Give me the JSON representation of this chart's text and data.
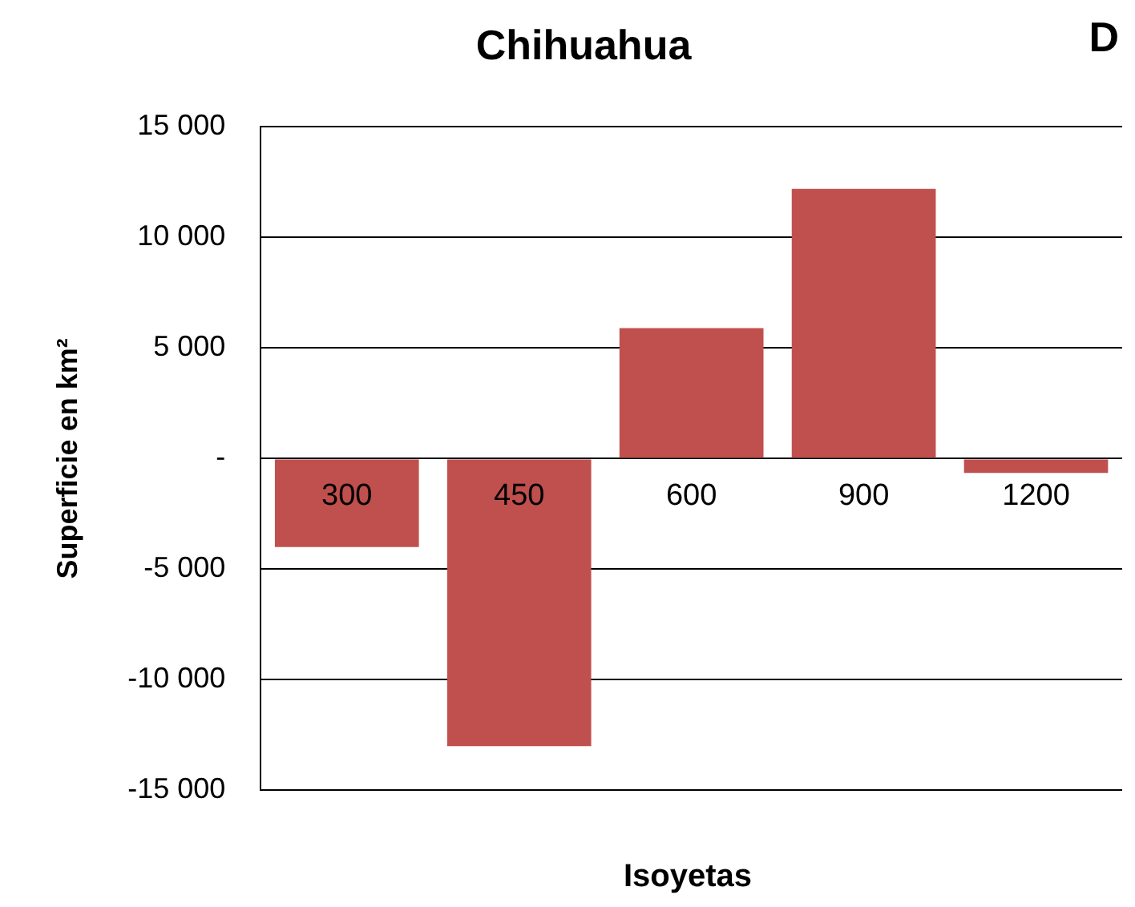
{
  "chart_data": {
    "type": "bar",
    "title": "Chihuahua",
    "annotations": [
      "D"
    ],
    "xlabel": "Isoyetas",
    "ylabel": "Superficie en km²",
    "categories": [
      "300",
      "450",
      "600",
      "900",
      "1200"
    ],
    "values": [
      -4000,
      -13000,
      5900,
      12200,
      -650
    ],
    "color": "#c0504d",
    "ylim": [
      -15000,
      15000
    ],
    "yticks": [
      {
        "value": -15000,
        "label": "-15 000"
      },
      {
        "value": -10000,
        "label": "-10 000"
      },
      {
        "value": -5000,
        "label": "-5 000"
      },
      {
        "value": 0,
        "label": "-"
      },
      {
        "value": 5000,
        "label": "5 000"
      },
      {
        "value": 10000,
        "label": "10 000"
      },
      {
        "value": 15000,
        "label": "15 000"
      }
    ],
    "grid": "y",
    "legend": false
  }
}
